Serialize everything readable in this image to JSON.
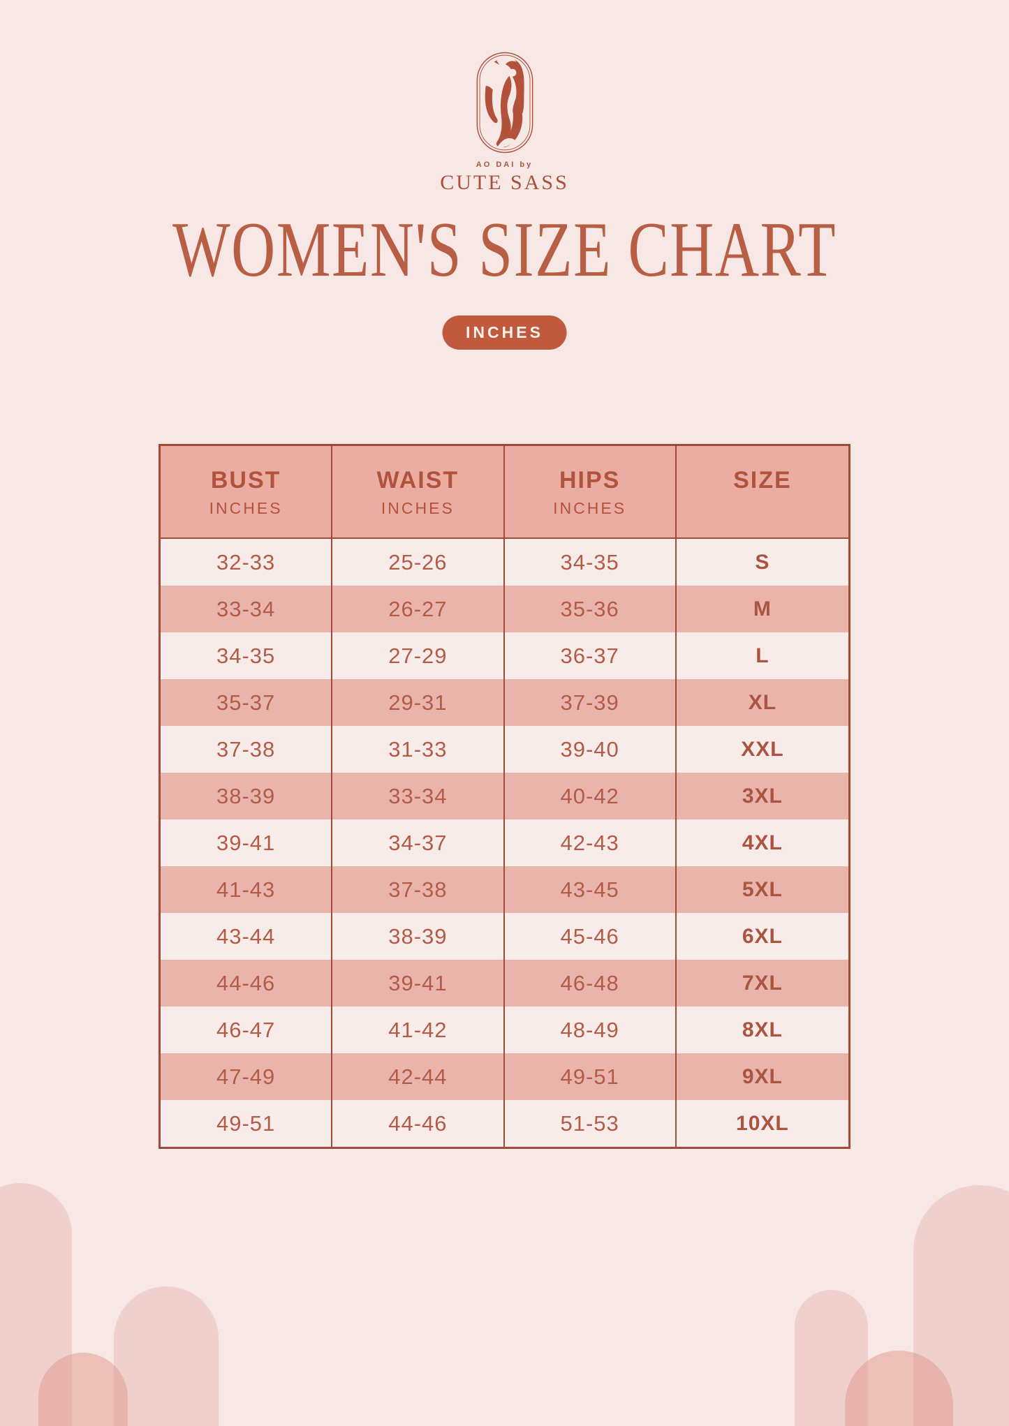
{
  "brand": {
    "tagline": "AO DAI by",
    "name": "CUTE SASS",
    "logo": "ao-dai-woman-in-oval"
  },
  "title": "WOMEN'S SIZE CHART",
  "unit_badge": "INCHES",
  "size_chart": {
    "columns": [
      {
        "key": "bust",
        "label": "BUST",
        "sub": "INCHES"
      },
      {
        "key": "waist",
        "label": "WAIST",
        "sub": "INCHES"
      },
      {
        "key": "hips",
        "label": "HIPS",
        "sub": "INCHES"
      },
      {
        "key": "size",
        "label": "SIZE",
        "sub": ""
      }
    ],
    "rows": [
      {
        "bust": "32-33",
        "waist": "25-26",
        "hips": "34-35",
        "size": "S"
      },
      {
        "bust": "33-34",
        "waist": "26-27",
        "hips": "35-36",
        "size": "M"
      },
      {
        "bust": "34-35",
        "waist": "27-29",
        "hips": "36-37",
        "size": "L"
      },
      {
        "bust": "35-37",
        "waist": "29-31",
        "hips": "37-39",
        "size": "XL"
      },
      {
        "bust": "37-38",
        "waist": "31-33",
        "hips": "39-40",
        "size": "XXL"
      },
      {
        "bust": "38-39",
        "waist": "33-34",
        "hips": "40-42",
        "size": "3XL"
      },
      {
        "bust": "39-41",
        "waist": "34-37",
        "hips": "42-43",
        "size": "4XL"
      },
      {
        "bust": "41-43",
        "waist": "37-38",
        "hips": "43-45",
        "size": "5XL"
      },
      {
        "bust": "43-44",
        "waist": "38-39",
        "hips": "45-46",
        "size": "6XL"
      },
      {
        "bust": "44-46",
        "waist": "39-41",
        "hips": "46-48",
        "size": "7XL"
      },
      {
        "bust": "46-47",
        "waist": "41-42",
        "hips": "48-49",
        "size": "8XL"
      },
      {
        "bust": "47-49",
        "waist": "42-44",
        "hips": "49-51",
        "size": "9XL"
      },
      {
        "bust": "49-51",
        "waist": "44-46",
        "hips": "51-53",
        "size": "10XL"
      }
    ]
  },
  "colors": {
    "background": "#f7e7e5",
    "row_light": "#f8ecea",
    "row_pink": "#e9b4ab",
    "header_bg": "#ebaca1",
    "table_line": "#9e4b39",
    "text": "#b25c47",
    "title_text": "#b85e44",
    "badge_bg": "#bf5a3e",
    "badge_text": "#fbf0ec",
    "logo": "#b3523a"
  }
}
